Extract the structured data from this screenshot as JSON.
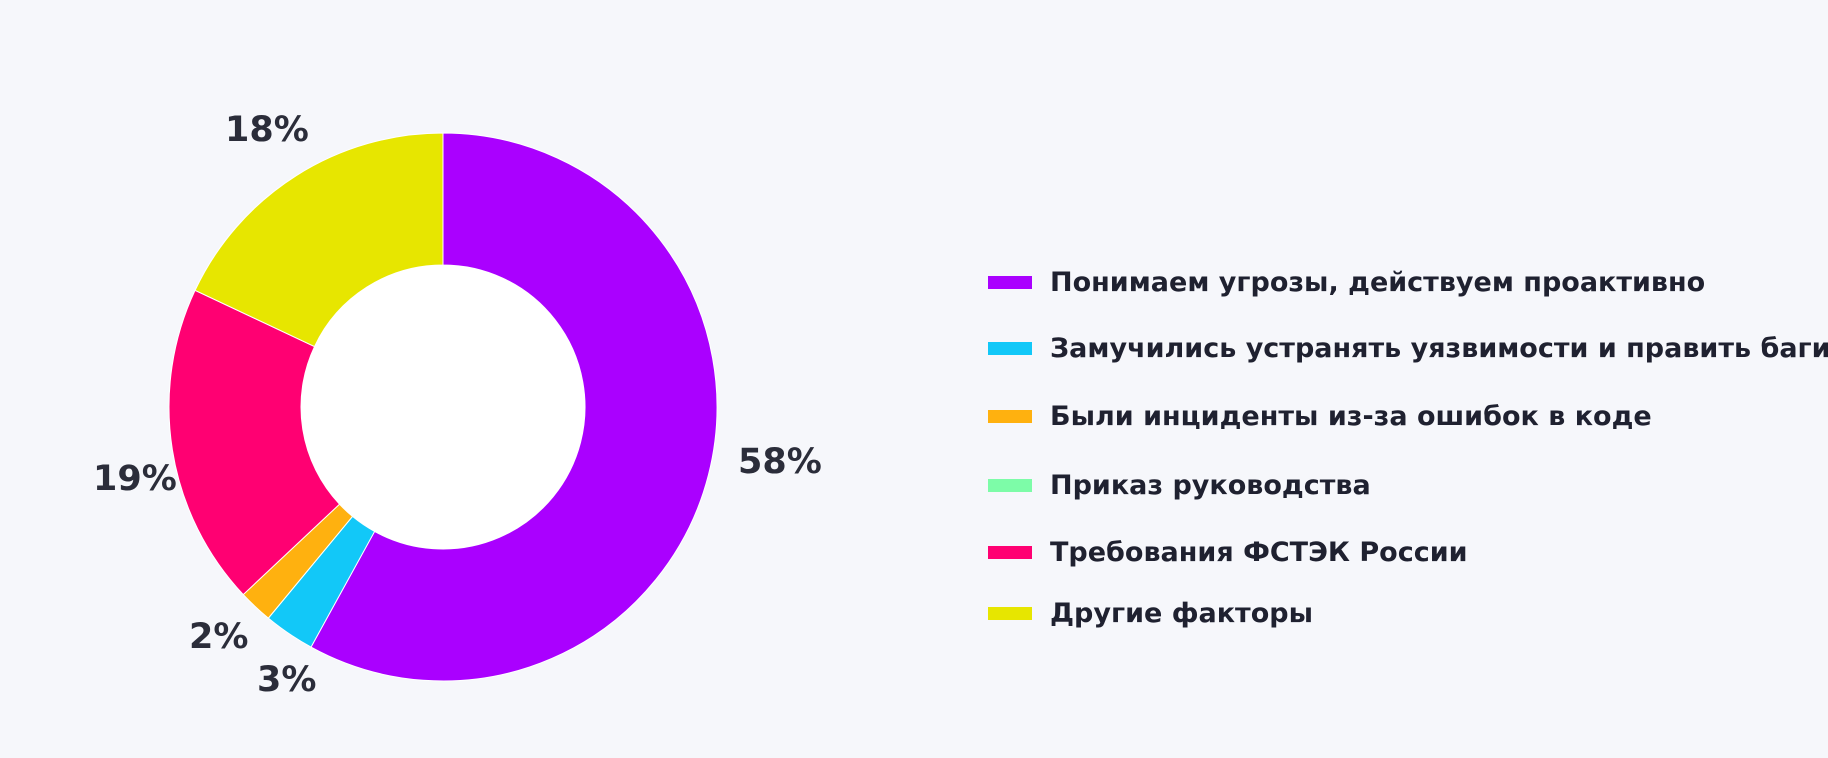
{
  "chart_data": {
    "type": "pie",
    "donut": true,
    "title": "",
    "legend_position": "right",
    "slices": [
      {
        "name": "Понимаем угрозы, действуем проактивно",
        "value": 58,
        "label": "58%",
        "color": "#aa00ff"
      },
      {
        "name": "Замучились устранять уязвимости и править баги",
        "value": 3,
        "label": "3%",
        "color": "#12c8f8"
      },
      {
        "name": "Были инциденты из-за ошибок в коде",
        "value": 2,
        "label": "2%",
        "color": "#ffb10f"
      },
      {
        "name": "Приказ руководства",
        "value": 0,
        "label": "",
        "color": "#7dfca8"
      },
      {
        "name": "Требования ФСТЭК России",
        "value": 19,
        "label": "19%",
        "color": "#ff0072"
      },
      {
        "name": "Другие факторы",
        "value": 18,
        "label": "18%",
        "color": "#e7e600"
      }
    ]
  }
}
